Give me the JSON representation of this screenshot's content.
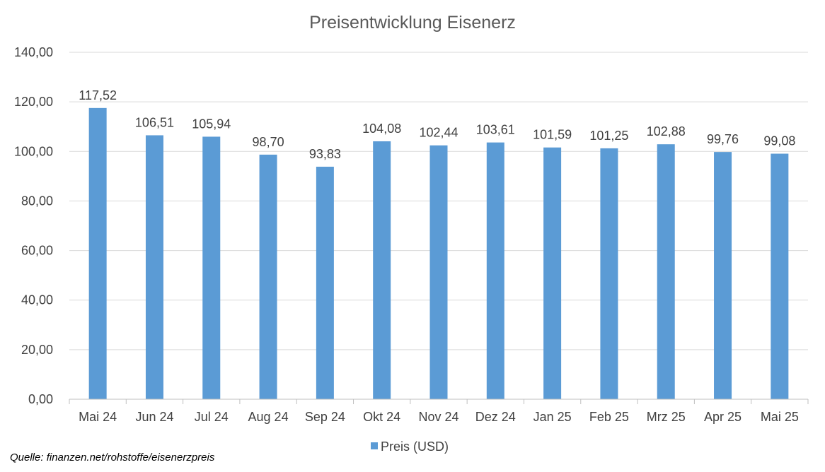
{
  "chart_data": {
    "type": "bar",
    "title": "Preisentwicklung Eisenerz",
    "xlabel": "",
    "ylabel": "",
    "categories": [
      "Mai 24",
      "Jun 24",
      "Jul 24",
      "Aug 24",
      "Sep 24",
      "Okt 24",
      "Nov 24",
      "Dez 24",
      "Jan 25",
      "Feb 25",
      "Mrz 25",
      "Apr 25",
      "Mai 25"
    ],
    "series": [
      {
        "name": "Preis (USD)",
        "values": [
          117.52,
          106.51,
          105.94,
          98.7,
          93.83,
          104.08,
          102.44,
          103.61,
          101.59,
          101.25,
          102.88,
          99.76,
          99.08
        ],
        "labels": [
          "117,52",
          "106,51",
          "105,94",
          "98,70",
          "93,83",
          "104,08",
          "102,44",
          "103,61",
          "101,59",
          "101,25",
          "102,88",
          "99,76",
          "99,08"
        ]
      }
    ],
    "ylim": [
      0,
      140
    ],
    "yticks": [
      0,
      20,
      40,
      60,
      80,
      100,
      120,
      140
    ],
    "ytick_labels": [
      "0,00",
      "20,00",
      "40,00",
      "60,00",
      "80,00",
      "100,00",
      "120,00",
      "140,00"
    ],
    "grid": true,
    "legend_position": "bottom",
    "colors": {
      "bar": "#5b9bd5",
      "grid": "#d9d9d9",
      "axis": "#bfbfbf",
      "text": "#404040",
      "title": "#595959"
    }
  },
  "source": "Quelle: finanzen.net/rohstoffe/eisenerzpreis"
}
